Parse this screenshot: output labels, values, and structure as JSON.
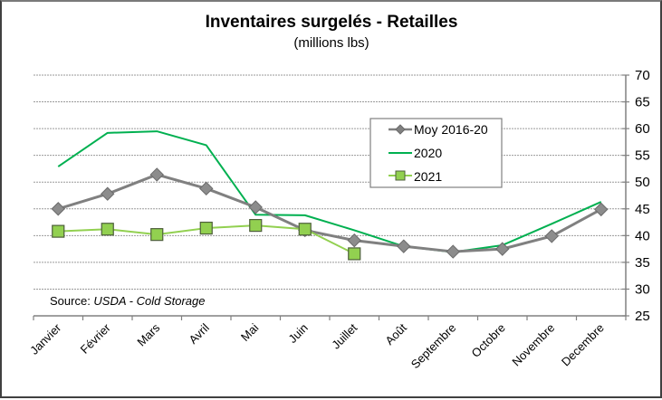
{
  "chart_data": {
    "type": "line",
    "title": "Inventaires surgelés - Retailles",
    "subtitle": "(millions lbs)",
    "xlabel": "",
    "ylabel": "",
    "yaxis_position": "right",
    "ylim": [
      25,
      70
    ],
    "ytick_step": 5,
    "yticks": [
      "70",
      "65",
      "60",
      "55",
      "50",
      "45",
      "40",
      "35",
      "30",
      "25"
    ],
    "grid": true,
    "legend_position": "top-center",
    "categories": [
      "Janvier",
      "Février",
      "Mars",
      "Avril",
      "Mai",
      "Juin",
      "Juillet",
      "Août",
      "Septembre",
      "Octobre",
      "Novembre",
      "Decembre"
    ],
    "series": [
      {
        "name": "Moy 2016-20",
        "color": "#808080",
        "marker": "diamond",
        "values": [
          45.0,
          47.8,
          51.4,
          48.8,
          45.3,
          41.0,
          39.1,
          38.0,
          37.0,
          37.5,
          39.9,
          44.9
        ]
      },
      {
        "name": "2020",
        "color": "#00B050",
        "marker": "none",
        "values": [
          52.9,
          59.2,
          59.5,
          56.9,
          43.9,
          43.8,
          41.0,
          38.0,
          36.9,
          38.2,
          42.2,
          46.3
        ]
      },
      {
        "name": "2021",
        "color": "#92D050",
        "marker": "square",
        "values": [
          40.8,
          41.2,
          40.2,
          41.4,
          41.9,
          41.2,
          36.6,
          null,
          null,
          null,
          null,
          null
        ]
      }
    ],
    "annotation": {
      "prefix": "Source: ",
      "italic": "USDA - Cold Storage"
    }
  }
}
